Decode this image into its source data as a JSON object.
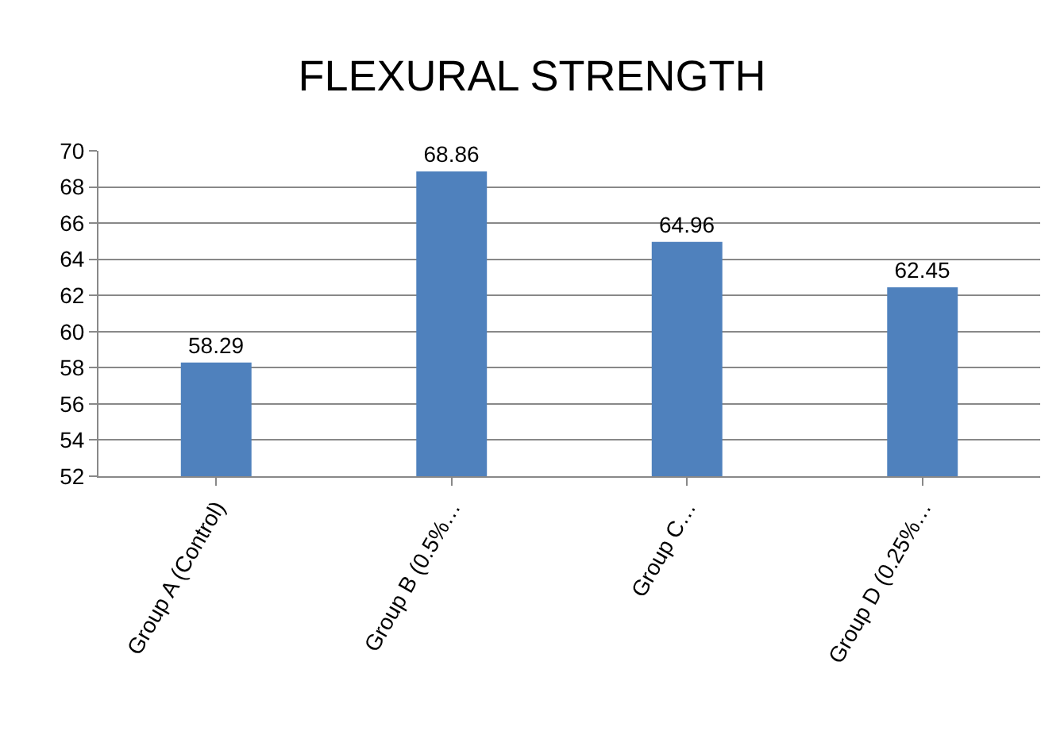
{
  "chart_data": {
    "type": "bar",
    "title": "FLEXURAL STRENGTH",
    "categories": [
      "Group A (Control)",
      "Group B (0.5%…",
      "Group C…",
      "Group D (0.25%…"
    ],
    "values": [
      58.29,
      68.86,
      64.96,
      62.45
    ],
    "color": "#4f81bd",
    "ylim": [
      52,
      70
    ],
    "yticks": [
      52,
      54,
      56,
      58,
      60,
      62,
      64,
      66,
      68,
      70
    ],
    "grid": "y",
    "data_labels": true,
    "legend": false
  }
}
